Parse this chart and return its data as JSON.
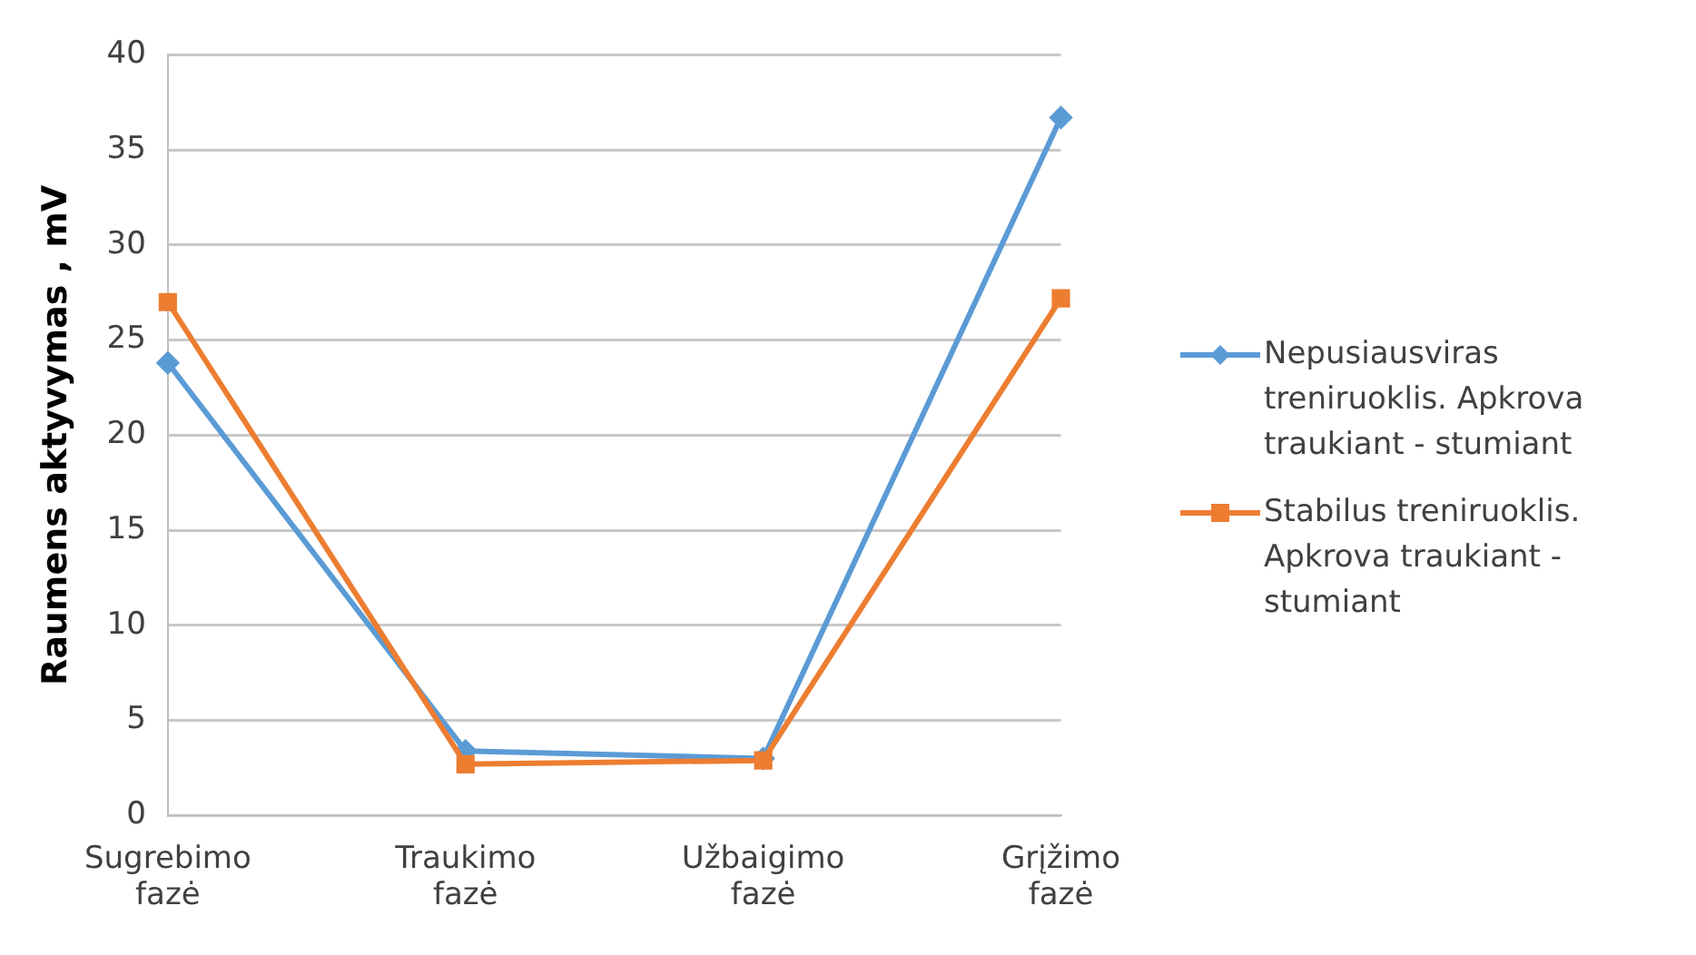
{
  "chart_data": {
    "type": "line",
    "ylabel": "Raumens aktyvymas , mV",
    "categories": [
      "Sugrebimo fazė",
      "Traukimo fazė",
      "Užbaigimo fazė",
      "Grįžimo fazė"
    ],
    "series": [
      {
        "name": "Nepusiausviras treniruoklis.  Apkrova traukiant - stumiant",
        "color": "#5b9bd5",
        "marker": "diamond",
        "values": [
          23.8,
          3.4,
          3.0,
          36.7
        ]
      },
      {
        "name": "Stabilus treniruoklis. Apkrova traukiant - stumiant",
        "color": "#ed7d31",
        "marker": "square",
        "values": [
          27.0,
          2.7,
          2.9,
          27.2
        ]
      }
    ],
    "ylim": [
      0,
      40
    ],
    "yticks": [
      0,
      5,
      10,
      15,
      20,
      25,
      30,
      35,
      40
    ],
    "grid": "y",
    "legend": "right",
    "line_style": "solid"
  }
}
